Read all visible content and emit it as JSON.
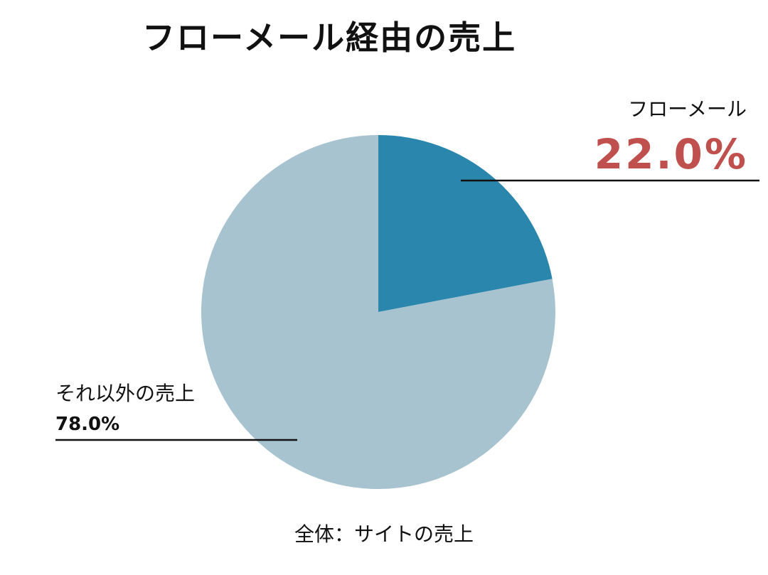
{
  "chart_data": {
    "type": "pie",
    "title": "フローメール経由の売上",
    "slices": [
      {
        "label": "フローメール",
        "value_label": "22.0%",
        "value": 22.0,
        "color": "#2b86ad"
      },
      {
        "label": "それ以外の売上",
        "value_label": "78.0%",
        "value": 78.0,
        "color": "#a7c3cf"
      }
    ],
    "value_colors": [
      "#c0504d",
      "#111111"
    ],
    "footnote": "全体：サイトの売上",
    "start_angle": "12 o'clock",
    "direction": "clockwise"
  }
}
